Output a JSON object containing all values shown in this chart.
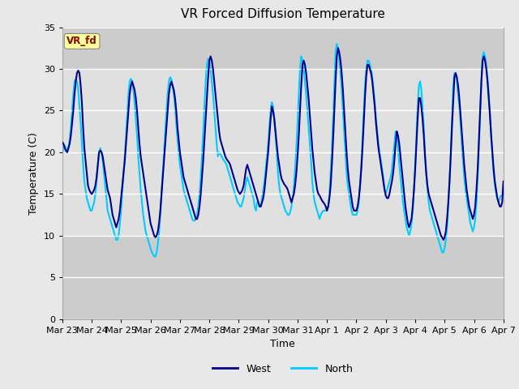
{
  "title": "VR Forced Diffusion Temperature",
  "xlabel": "Time",
  "ylabel": "Temperature (C)",
  "ylim": [
    0,
    35
  ],
  "yticks": [
    0,
    5,
    10,
    15,
    20,
    25,
    30,
    35
  ],
  "fig_bg": "#e8e8e8",
  "plot_bg": "#e8e8e8",
  "band_dark": "#cccccc",
  "band_light": "#e0e0e0",
  "west_color": "#00008B",
  "north_color": "#00CCFF",
  "annotation_text": "VR_fd",
  "annotation_color": "#8B0000",
  "annotation_bg": "#FFFF99",
  "x_labels": [
    "Mar 23",
    "Mar 24",
    "Mar 25",
    "Mar 26",
    "Mar 27",
    "Mar 28",
    "Mar 29",
    "Mar 30",
    "Mar 31",
    "Apr 1",
    "Apr 2",
    "Apr 3",
    "Apr 4",
    "Apr 5",
    "Apr 6",
    "Apr 7"
  ],
  "west_data": [
    21.2,
    21.0,
    20.5,
    20.2,
    20.0,
    20.5,
    21.0,
    22.0,
    23.5,
    25.0,
    27.0,
    28.5,
    29.5,
    29.8,
    29.5,
    28.0,
    26.0,
    23.0,
    20.5,
    19.0,
    17.5,
    16.0,
    15.5,
    15.2,
    15.0,
    15.2,
    15.5,
    16.0,
    17.0,
    18.5,
    20.0,
    20.2,
    20.0,
    19.5,
    18.5,
    17.5,
    16.5,
    15.5,
    15.0,
    14.5,
    13.5,
    12.5,
    12.0,
    11.5,
    11.0,
    11.5,
    12.0,
    13.0,
    14.5,
    16.0,
    17.5,
    19.0,
    21.0,
    23.0,
    25.0,
    27.0,
    28.0,
    28.5,
    28.0,
    27.5,
    26.5,
    25.0,
    23.0,
    21.0,
    19.5,
    18.5,
    17.5,
    16.5,
    15.5,
    14.5,
    13.5,
    12.5,
    11.5,
    11.0,
    10.5,
    10.0,
    9.8,
    10.0,
    10.5,
    11.5,
    13.0,
    15.0,
    17.0,
    19.0,
    21.0,
    23.0,
    25.0,
    27.0,
    28.0,
    28.5,
    28.0,
    27.5,
    26.5,
    25.0,
    23.0,
    21.5,
    20.0,
    19.0,
    18.0,
    17.0,
    16.5,
    16.0,
    15.5,
    15.0,
    14.5,
    14.0,
    13.5,
    13.0,
    12.5,
    12.0,
    12.0,
    12.5,
    13.5,
    15.0,
    17.0,
    19.0,
    21.5,
    24.0,
    26.5,
    29.0,
    31.0,
    31.5,
    31.0,
    30.0,
    28.5,
    27.0,
    25.5,
    24.0,
    22.5,
    21.5,
    21.0,
    20.5,
    20.0,
    19.5,
    19.2,
    19.0,
    18.8,
    18.5,
    18.0,
    17.5,
    17.0,
    16.5,
    16.0,
    15.5,
    15.2,
    15.0,
    15.2,
    15.5,
    16.0,
    17.0,
    18.0,
    18.5,
    18.0,
    17.5,
    17.0,
    16.5,
    16.0,
    15.5,
    15.0,
    14.5,
    14.0,
    13.5,
    13.5,
    14.0,
    14.5,
    15.5,
    17.0,
    18.5,
    20.0,
    22.0,
    24.0,
    25.5,
    25.0,
    24.0,
    22.5,
    21.0,
    19.5,
    18.5,
    17.5,
    16.8,
    16.5,
    16.2,
    16.0,
    15.8,
    15.5,
    15.0,
    14.5,
    14.0,
    14.5,
    15.0,
    16.0,
    17.5,
    19.5,
    22.0,
    25.0,
    28.0,
    30.5,
    31.0,
    30.5,
    29.5,
    28.0,
    26.5,
    24.5,
    22.5,
    20.5,
    19.0,
    17.5,
    16.5,
    15.5,
    15.0,
    14.8,
    14.5,
    14.2,
    14.0,
    13.8,
    13.5,
    13.0,
    13.5,
    14.5,
    16.0,
    18.5,
    21.5,
    25.0,
    28.5,
    31.5,
    32.5,
    32.0,
    31.0,
    29.5,
    27.5,
    25.0,
    22.5,
    20.0,
    18.0,
    16.5,
    15.5,
    14.5,
    13.5,
    13.0,
    13.0,
    13.0,
    13.5,
    14.5,
    16.0,
    18.0,
    20.5,
    23.5,
    26.5,
    29.0,
    30.5,
    30.5,
    30.0,
    29.5,
    28.5,
    27.0,
    25.5,
    23.5,
    22.0,
    20.5,
    19.5,
    18.5,
    17.5,
    16.5,
    15.5,
    14.8,
    14.5,
    14.5,
    15.0,
    15.8,
    16.5,
    17.5,
    19.0,
    21.0,
    22.5,
    22.0,
    21.0,
    19.5,
    18.0,
    16.5,
    15.0,
    13.5,
    12.5,
    11.5,
    11.0,
    11.5,
    12.0,
    13.5,
    15.5,
    18.0,
    21.0,
    24.0,
    26.5,
    26.5,
    25.5,
    24.0,
    22.0,
    19.5,
    17.5,
    16.0,
    15.0,
    14.5,
    14.0,
    13.5,
    13.0,
    12.5,
    12.0,
    11.5,
    11.0,
    10.5,
    10.0,
    9.8,
    9.5,
    9.8,
    10.5,
    12.0,
    14.0,
    16.5,
    19.5,
    23.0,
    26.0,
    29.0,
    29.5,
    29.0,
    28.0,
    26.5,
    24.5,
    22.5,
    20.5,
    18.5,
    17.0,
    15.5,
    14.5,
    13.5,
    13.0,
    12.5,
    12.0,
    12.5,
    13.5,
    15.5,
    18.0,
    21.5,
    25.0,
    28.5,
    31.0,
    31.5,
    31.0,
    30.0,
    28.5,
    26.5,
    24.5,
    22.0,
    20.0,
    18.0,
    16.5,
    15.5,
    14.5,
    14.0,
    13.5,
    13.5,
    14.0,
    16.5
  ],
  "north_data": [
    19.5,
    20.5,
    20.8,
    20.5,
    20.0,
    20.5,
    21.5,
    23.0,
    25.0,
    27.0,
    28.5,
    28.8,
    28.5,
    27.5,
    25.5,
    23.5,
    21.0,
    18.5,
    16.5,
    15.5,
    14.5,
    14.0,
    13.5,
    13.0,
    13.0,
    13.5,
    14.0,
    15.0,
    16.5,
    18.5,
    20.0,
    20.5,
    20.0,
    19.0,
    17.5,
    16.0,
    14.5,
    13.0,
    12.5,
    12.0,
    11.5,
    11.0,
    10.5,
    10.0,
    9.5,
    9.5,
    10.0,
    11.5,
    13.0,
    15.5,
    17.5,
    19.5,
    22.0,
    24.5,
    27.0,
    28.5,
    28.8,
    28.5,
    27.5,
    26.0,
    24.0,
    22.0,
    19.5,
    17.5,
    15.5,
    14.0,
    12.5,
    11.5,
    10.5,
    10.0,
    9.5,
    9.0,
    8.5,
    8.0,
    7.8,
    7.5,
    7.5,
    8.0,
    9.0,
    10.5,
    12.5,
    15.0,
    17.5,
    20.0,
    22.5,
    25.0,
    27.0,
    28.5,
    29.0,
    28.8,
    28.0,
    27.0,
    25.5,
    23.5,
    21.5,
    20.0,
    18.5,
    17.5,
    16.5,
    15.5,
    15.0,
    14.5,
    14.0,
    13.5,
    13.0,
    12.5,
    12.0,
    11.8,
    11.8,
    12.0,
    12.5,
    13.5,
    15.0,
    17.0,
    19.5,
    22.5,
    25.5,
    28.5,
    30.5,
    31.2,
    31.0,
    30.0,
    28.5,
    27.0,
    25.0,
    23.0,
    21.0,
    19.5,
    20.0,
    19.8,
    19.5,
    19.2,
    19.0,
    18.8,
    18.5,
    18.0,
    17.5,
    17.0,
    16.5,
    16.0,
    15.5,
    15.0,
    14.5,
    14.0,
    13.8,
    13.5,
    13.5,
    14.0,
    14.5,
    15.5,
    16.5,
    17.0,
    16.5,
    16.0,
    15.5,
    15.0,
    14.5,
    13.5,
    13.0,
    14.0,
    14.0,
    13.5,
    13.5,
    14.5,
    15.5,
    16.5,
    18.0,
    19.5,
    21.0,
    23.0,
    25.0,
    26.0,
    25.5,
    24.0,
    22.0,
    20.0,
    17.5,
    16.0,
    15.0,
    14.5,
    14.0,
    13.5,
    13.0,
    12.8,
    12.5,
    12.5,
    12.8,
    13.5,
    14.5,
    16.0,
    18.0,
    20.5,
    23.5,
    27.0,
    30.0,
    31.5,
    31.0,
    30.0,
    28.5,
    27.0,
    25.0,
    23.0,
    21.0,
    19.0,
    16.5,
    15.0,
    14.0,
    13.5,
    13.0,
    12.5,
    12.0,
    12.5,
    12.8,
    13.0,
    13.0,
    13.0,
    13.0,
    13.5,
    15.0,
    17.5,
    20.5,
    24.0,
    28.0,
    32.0,
    33.0,
    32.5,
    31.0,
    29.5,
    27.5,
    25.0,
    22.5,
    20.0,
    17.5,
    16.0,
    15.0,
    14.0,
    13.0,
    12.5,
    12.5,
    12.5,
    12.5,
    13.0,
    14.0,
    16.0,
    18.5,
    21.5,
    25.0,
    28.0,
    30.0,
    31.0,
    31.0,
    30.5,
    30.0,
    29.0,
    27.5,
    26.0,
    24.0,
    22.5,
    21.0,
    20.0,
    19.0,
    18.0,
    17.0,
    15.5,
    15.0,
    15.5,
    16.0,
    16.5,
    17.0,
    18.0,
    19.5,
    21.0,
    22.5,
    22.0,
    20.5,
    18.5,
    17.0,
    15.5,
    14.0,
    13.0,
    12.0,
    11.0,
    10.5,
    10.0,
    10.5,
    11.5,
    13.0,
    15.5,
    18.5,
    22.0,
    25.5,
    28.0,
    28.5,
    27.5,
    25.5,
    23.0,
    20.0,
    17.5,
    15.5,
    14.0,
    13.0,
    12.5,
    12.0,
    11.5,
    11.0,
    10.5,
    10.0,
    9.5,
    9.0,
    8.5,
    8.0,
    8.0,
    8.5,
    9.5,
    11.0,
    13.5,
    16.5,
    20.0,
    24.0,
    28.0,
    29.5,
    29.5,
    28.5,
    27.0,
    25.5,
    23.5,
    21.0,
    19.0,
    17.0,
    15.5,
    14.5,
    13.5,
    12.5,
    11.5,
    11.0,
    10.5,
    11.0,
    12.0,
    14.0,
    17.0,
    20.5,
    24.5,
    28.5,
    31.5,
    32.0,
    31.5,
    30.5,
    29.0,
    27.0,
    24.5,
    22.0,
    19.5,
    17.5,
    16.0,
    15.0,
    14.5,
    14.0,
    14.5,
    14.8,
    15.0,
    16.0
  ]
}
